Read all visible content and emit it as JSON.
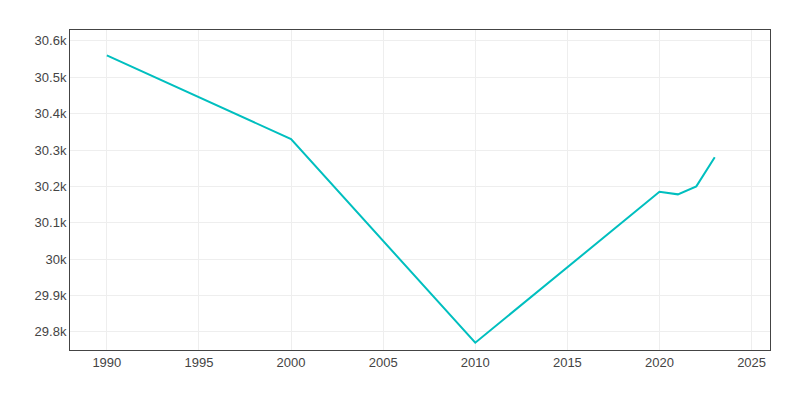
{
  "chart_data": {
    "type": "line",
    "x": [
      1990,
      2000,
      2010,
      2020,
      2021,
      2022,
      2023
    ],
    "values": [
      30560,
      30330,
      29770,
      30185,
      30178,
      30200,
      30280
    ],
    "color": "#00BFBF",
    "xlim": [
      1988,
      2026
    ],
    "xticks": [
      1990,
      1995,
      2000,
      2005,
      2010,
      2015,
      2020,
      2025
    ],
    "ylim": [
      29750,
      30630
    ],
    "yticks": [
      {
        "value": 29800,
        "label": "29.8k"
      },
      {
        "value": 29900,
        "label": "29.9k"
      },
      {
        "value": 30000,
        "label": "30k"
      },
      {
        "value": 30100,
        "label": "30.1k"
      },
      {
        "value": 30200,
        "label": "30.2k"
      },
      {
        "value": 30300,
        "label": "30.3k"
      },
      {
        "value": 30400,
        "label": "30.4k"
      },
      {
        "value": 30500,
        "label": "30.5k"
      },
      {
        "value": 30600,
        "label": "30.6k"
      }
    ],
    "grid": true
  }
}
